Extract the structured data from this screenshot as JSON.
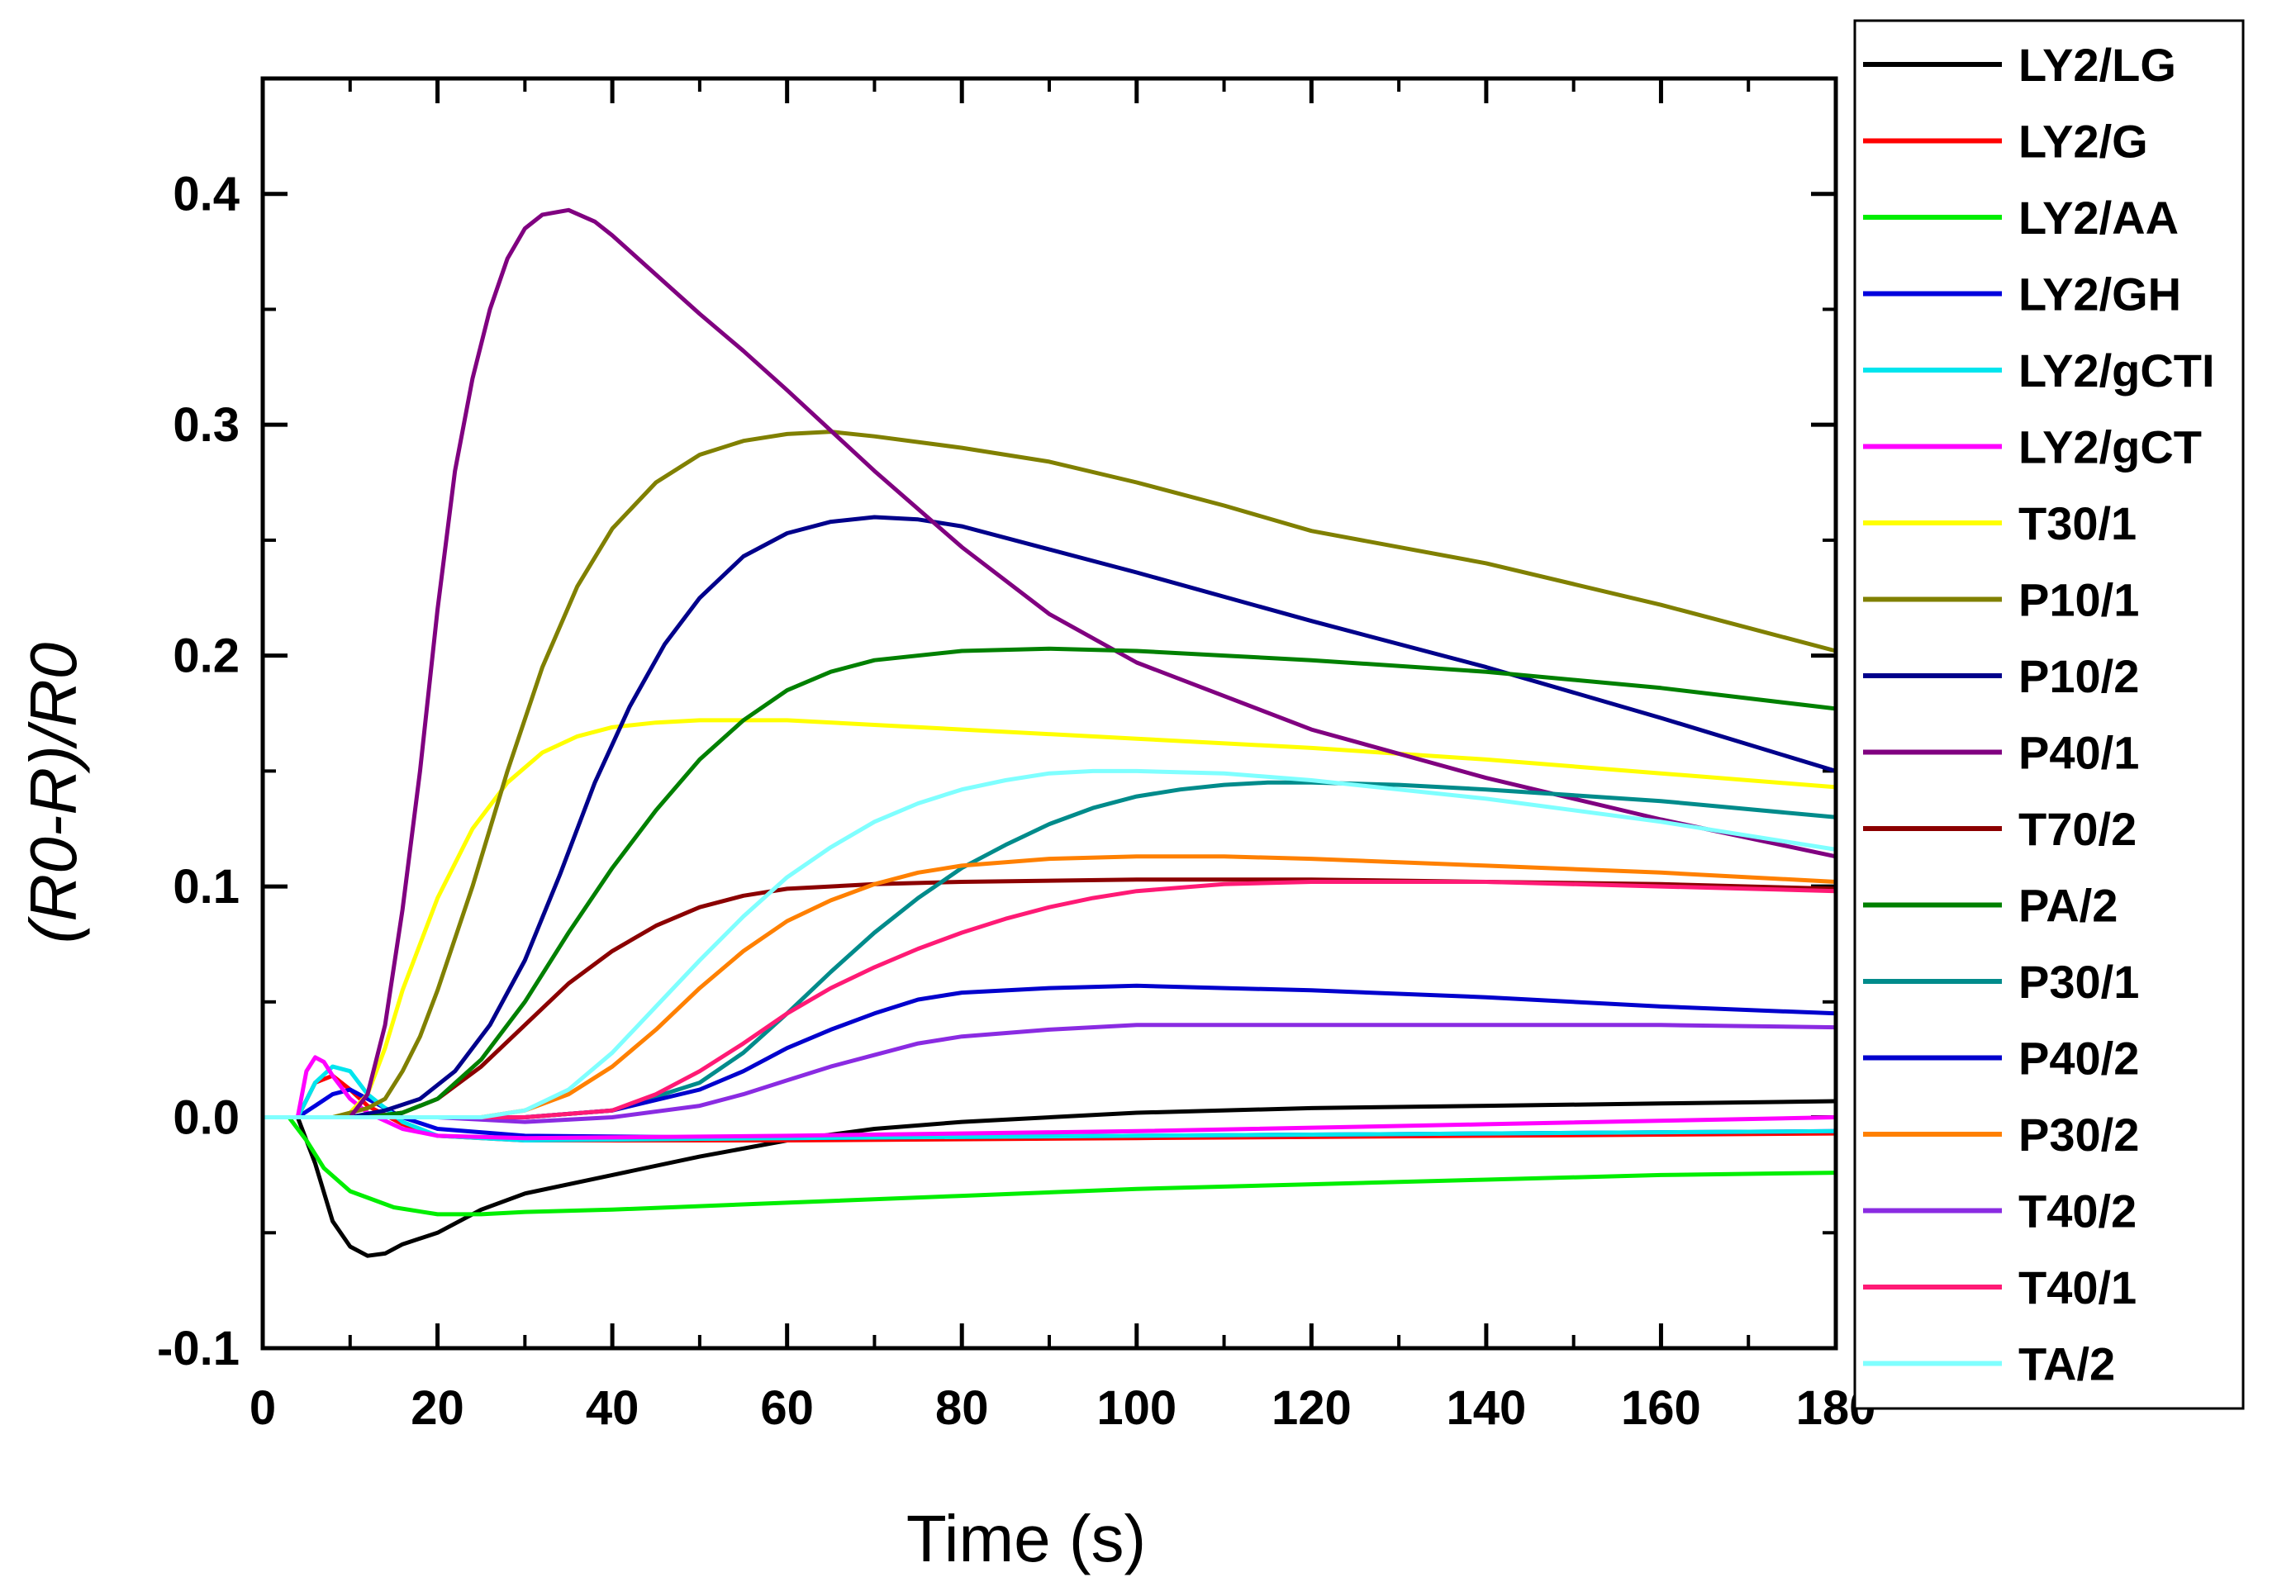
{
  "chart_data": {
    "type": "line",
    "title": "",
    "xlabel": "Time (s)",
    "ylabel": "(R0-R)/R0",
    "xlim": [
      0,
      180
    ],
    "ylim": [
      -0.1,
      0.45
    ],
    "xticks": [
      0,
      20,
      40,
      60,
      80,
      100,
      120,
      140,
      160,
      180
    ],
    "xtick_labels": [
      "0",
      "20",
      "40",
      "60",
      "80",
      "100",
      "120",
      "140",
      "160",
      "180"
    ],
    "yticks": [
      -0.1,
      0.0,
      0.1,
      0.2,
      0.3,
      0.4
    ],
    "ytick_labels": [
      "-0.1",
      "0.0",
      "0.1",
      "0.2",
      "0.3",
      "0.4"
    ],
    "grid": false,
    "legend_position": "right, outside plot",
    "series": [
      {
        "name": "LY2/LG",
        "color": "#000000",
        "x": [
          0,
          4,
          6,
          8,
          10,
          12,
          14,
          16,
          20,
          25,
          30,
          40,
          50,
          60,
          70,
          80,
          100,
          120,
          140,
          160,
          180
        ],
        "y": [
          0,
          0,
          -0.02,
          -0.045,
          -0.056,
          -0.06,
          -0.059,
          -0.055,
          -0.05,
          -0.04,
          -0.033,
          -0.025,
          -0.017,
          -0.01,
          -0.005,
          -0.002,
          0.002,
          0.004,
          0.005,
          0.006,
          0.007
        ]
      },
      {
        "name": "LY2/G",
        "color": "#ff0000",
        "x": [
          0,
          4,
          6,
          8,
          10,
          12,
          16,
          20,
          30,
          60,
          100,
          140,
          180
        ],
        "y": [
          0,
          0,
          0.015,
          0.018,
          0.012,
          0.005,
          -0.003,
          -0.008,
          -0.01,
          -0.01,
          -0.009,
          -0.008,
          -0.007
        ]
      },
      {
        "name": "LY2/AA",
        "color": "#00ee00",
        "x": [
          0,
          3,
          5,
          7,
          10,
          15,
          20,
          25,
          30,
          40,
          60,
          80,
          100,
          120,
          140,
          160,
          180
        ],
        "y": [
          0,
          0,
          -0.01,
          -0.022,
          -0.032,
          -0.039,
          -0.042,
          -0.042,
          -0.041,
          -0.04,
          -0.037,
          -0.034,
          -0.031,
          -0.029,
          -0.027,
          -0.025,
          -0.024
        ]
      },
      {
        "name": "LY2/GH",
        "color": "#0000dd",
        "x": [
          0,
          4,
          6,
          8,
          10,
          12,
          16,
          20,
          30,
          60,
          100,
          140,
          180
        ],
        "y": [
          0,
          0,
          0.005,
          0.01,
          0.012,
          0.008,
          0,
          -0.005,
          -0.008,
          -0.009,
          -0.008,
          -0.007,
          -0.006
        ]
      },
      {
        "name": "LY2/gCTI",
        "color": "#00e5ee",
        "x": [
          0,
          4,
          6,
          8,
          10,
          12,
          16,
          20,
          30,
          60,
          100,
          140,
          180
        ],
        "y": [
          0,
          0,
          0.015,
          0.022,
          0.02,
          0.01,
          -0.002,
          -0.008,
          -0.01,
          -0.009,
          -0.008,
          -0.007,
          -0.006
        ]
      },
      {
        "name": "LY2/gCT",
        "color": "#ff00ff",
        "x": [
          0,
          4,
          5,
          6,
          7,
          8,
          10,
          12,
          16,
          20,
          30,
          60,
          100,
          140,
          180
        ],
        "y": [
          0,
          0,
          0.02,
          0.026,
          0.024,
          0.018,
          0.008,
          0.002,
          -0.005,
          -0.008,
          -0.009,
          -0.008,
          -0.006,
          -0.003,
          0.0
        ]
      },
      {
        "name": "T30/1",
        "color": "#ffff00",
        "x": [
          0,
          5,
          8,
          10,
          12,
          14,
          16,
          20,
          24,
          28,
          32,
          36,
          40,
          45,
          50,
          55,
          60,
          70,
          80,
          100,
          120,
          140,
          160,
          180
        ],
        "y": [
          0,
          0,
          0,
          0.002,
          0.01,
          0.03,
          0.055,
          0.095,
          0.125,
          0.145,
          0.158,
          0.165,
          0.169,
          0.171,
          0.172,
          0.172,
          0.172,
          0.17,
          0.168,
          0.164,
          0.16,
          0.155,
          0.149,
          0.143
        ]
      },
      {
        "name": "P10/1",
        "color": "#808000",
        "x": [
          0,
          8,
          10,
          12,
          14,
          16,
          18,
          20,
          24,
          28,
          32,
          36,
          40,
          45,
          50,
          55,
          60,
          65,
          70,
          80,
          90,
          100,
          110,
          120,
          140,
          160,
          180
        ],
        "y": [
          0,
          0,
          0.002,
          0.004,
          0.008,
          0.02,
          0.035,
          0.055,
          0.1,
          0.15,
          0.195,
          0.23,
          0.255,
          0.275,
          0.287,
          0.293,
          0.296,
          0.297,
          0.295,
          0.29,
          0.284,
          0.275,
          0.265,
          0.254,
          0.24,
          0.222,
          0.202
        ]
      },
      {
        "name": "P10/2",
        "color": "#00008b",
        "x": [
          0,
          10,
          14,
          18,
          22,
          26,
          30,
          34,
          38,
          42,
          46,
          50,
          55,
          60,
          65,
          70,
          75,
          80,
          90,
          100,
          120,
          140,
          160,
          180
        ],
        "y": [
          0,
          0,
          0.003,
          0.008,
          0.02,
          0.04,
          0.068,
          0.105,
          0.145,
          0.178,
          0.205,
          0.225,
          0.243,
          0.253,
          0.258,
          0.26,
          0.259,
          0.256,
          0.246,
          0.236,
          0.215,
          0.195,
          0.173,
          0.15
        ]
      },
      {
        "name": "P40/1",
        "color": "#800080",
        "x": [
          0,
          10,
          12,
          14,
          16,
          18,
          20,
          22,
          24,
          26,
          28,
          30,
          32,
          35,
          38,
          40,
          45,
          50,
          55,
          60,
          70,
          80,
          90,
          100,
          120,
          140,
          160,
          180
        ],
        "y": [
          0,
          0,
          0.01,
          0.04,
          0.09,
          0.15,
          0.22,
          0.28,
          0.32,
          0.35,
          0.372,
          0.385,
          0.391,
          0.393,
          0.388,
          0.382,
          0.365,
          0.348,
          0.332,
          0.315,
          0.28,
          0.247,
          0.218,
          0.197,
          0.168,
          0.147,
          0.129,
          0.113
        ]
      },
      {
        "name": "T70/2",
        "color": "#8b0000",
        "x": [
          0,
          12,
          16,
          20,
          25,
          30,
          35,
          40,
          45,
          50,
          55,
          60,
          70,
          80,
          100,
          120,
          140,
          160,
          180
        ],
        "y": [
          0,
          0,
          0.002,
          0.008,
          0.022,
          0.04,
          0.058,
          0.072,
          0.083,
          0.091,
          0.096,
          0.099,
          0.101,
          0.102,
          0.103,
          0.103,
          0.102,
          0.101,
          0.099
        ]
      },
      {
        "name": "PA/2",
        "color": "#008000",
        "x": [
          0,
          12,
          16,
          20,
          25,
          30,
          35,
          40,
          45,
          50,
          55,
          60,
          65,
          70,
          80,
          90,
          100,
          110,
          120,
          140,
          160,
          180
        ],
        "y": [
          0,
          0,
          0.002,
          0.008,
          0.025,
          0.05,
          0.08,
          0.108,
          0.133,
          0.155,
          0.172,
          0.185,
          0.193,
          0.198,
          0.202,
          0.203,
          0.202,
          0.2,
          0.198,
          0.193,
          0.186,
          0.177
        ]
      },
      {
        "name": "P30/1",
        "color": "#008b8b",
        "x": [
          0,
          20,
          30,
          40,
          50,
          55,
          60,
          65,
          70,
          75,
          80,
          85,
          90,
          95,
          100,
          105,
          110,
          115,
          120,
          130,
          140,
          160,
          180
        ],
        "y": [
          0,
          0,
          0,
          0.003,
          0.015,
          0.028,
          0.045,
          0.063,
          0.08,
          0.095,
          0.108,
          0.118,
          0.127,
          0.134,
          0.139,
          0.142,
          0.144,
          0.145,
          0.145,
          0.144,
          0.142,
          0.137,
          0.13
        ]
      },
      {
        "name": "P40/2",
        "color": "#0000cd",
        "x": [
          0,
          20,
          30,
          40,
          50,
          55,
          60,
          65,
          70,
          75,
          80,
          90,
          100,
          110,
          120,
          140,
          160,
          180
        ],
        "y": [
          0,
          0,
          0,
          0.003,
          0.012,
          0.02,
          0.03,
          0.038,
          0.045,
          0.051,
          0.054,
          0.056,
          0.057,
          0.056,
          0.055,
          0.052,
          0.048,
          0.045
        ]
      },
      {
        "name": "P30/2",
        "color": "#ff8000",
        "x": [
          0,
          20,
          25,
          30,
          35,
          40,
          45,
          50,
          55,
          60,
          65,
          70,
          75,
          80,
          90,
          100,
          110,
          120,
          140,
          160,
          180
        ],
        "y": [
          0,
          0,
          0,
          0.003,
          0.01,
          0.022,
          0.038,
          0.056,
          0.072,
          0.085,
          0.094,
          0.101,
          0.106,
          0.109,
          0.112,
          0.113,
          0.113,
          0.112,
          0.109,
          0.106,
          0.102
        ]
      },
      {
        "name": "T40/2",
        "color": "#8a2be2",
        "x": [
          0,
          20,
          30,
          40,
          50,
          55,
          60,
          65,
          70,
          75,
          80,
          90,
          100,
          110,
          120,
          140,
          160,
          180
        ],
        "y": [
          0,
          0,
          -0.002,
          0,
          0.005,
          0.01,
          0.016,
          0.022,
          0.027,
          0.032,
          0.035,
          0.038,
          0.04,
          0.04,
          0.04,
          0.04,
          0.04,
          0.039
        ]
      },
      {
        "name": "T40/1",
        "color": "#ff1a75",
        "x": [
          0,
          20,
          30,
          40,
          45,
          50,
          55,
          60,
          65,
          70,
          75,
          80,
          85,
          90,
          95,
          100,
          110,
          120,
          140,
          160,
          180
        ],
        "y": [
          0,
          0,
          0,
          0.003,
          0.01,
          0.02,
          0.032,
          0.045,
          0.056,
          0.065,
          0.073,
          0.08,
          0.086,
          0.091,
          0.095,
          0.098,
          0.101,
          0.102,
          0.102,
          0.1,
          0.098
        ]
      },
      {
        "name": "TA/2",
        "color": "#7fffff",
        "x": [
          0,
          25,
          30,
          35,
          40,
          45,
          50,
          55,
          60,
          65,
          70,
          75,
          80,
          85,
          90,
          95,
          100,
          110,
          120,
          140,
          160,
          180
        ],
        "y": [
          0,
          0,
          0.003,
          0.012,
          0.028,
          0.048,
          0.068,
          0.087,
          0.104,
          0.117,
          0.128,
          0.136,
          0.142,
          0.146,
          0.149,
          0.15,
          0.15,
          0.149,
          0.146,
          0.138,
          0.128,
          0.116
        ]
      }
    ]
  }
}
